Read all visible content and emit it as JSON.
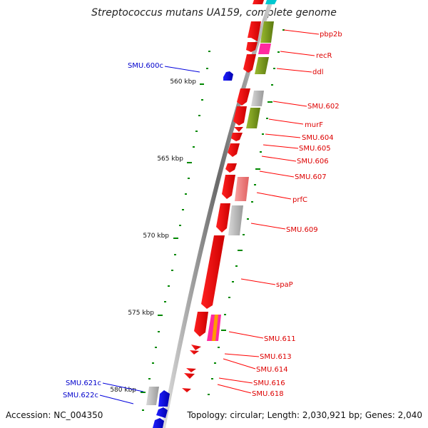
{
  "title": "Streptococcus mutans UA159, complete genome",
  "footer": {
    "accession": "Accession: NC_004350",
    "topology": "Topology: circular; Length: 2,030,921 bp; Genes: 2,040"
  },
  "kbp_labels": [
    "560 kbp",
    "565 kbp",
    "570 kbp",
    "575 kbp",
    "580 kbp"
  ],
  "genes_forward": [
    "pbp2b",
    "recR",
    "ddl",
    "SMU.602",
    "murF",
    "SMU.604",
    "SMU.605",
    "SMU.606",
    "SMU.607",
    "prfC",
    "SMU.609",
    "spaP",
    "SMU.611",
    "SMU.613",
    "SMU.614",
    "SMU.616",
    "SMU.618"
  ],
  "genes_reverse": [
    "SMU.600c",
    "SMU.621c",
    "SMU.622c"
  ],
  "colors": {
    "forward_gene": "#ff0000",
    "reverse_gene": "#0000ff",
    "backbone": "#888888",
    "cog_green": "#7a9a1a",
    "cog_gray": "#b8b8b8",
    "cog_pink": "#f08080",
    "cog_magenta": "#ff2aa0",
    "cog_cyan": "#00c8d0",
    "tick": "#008800"
  }
}
